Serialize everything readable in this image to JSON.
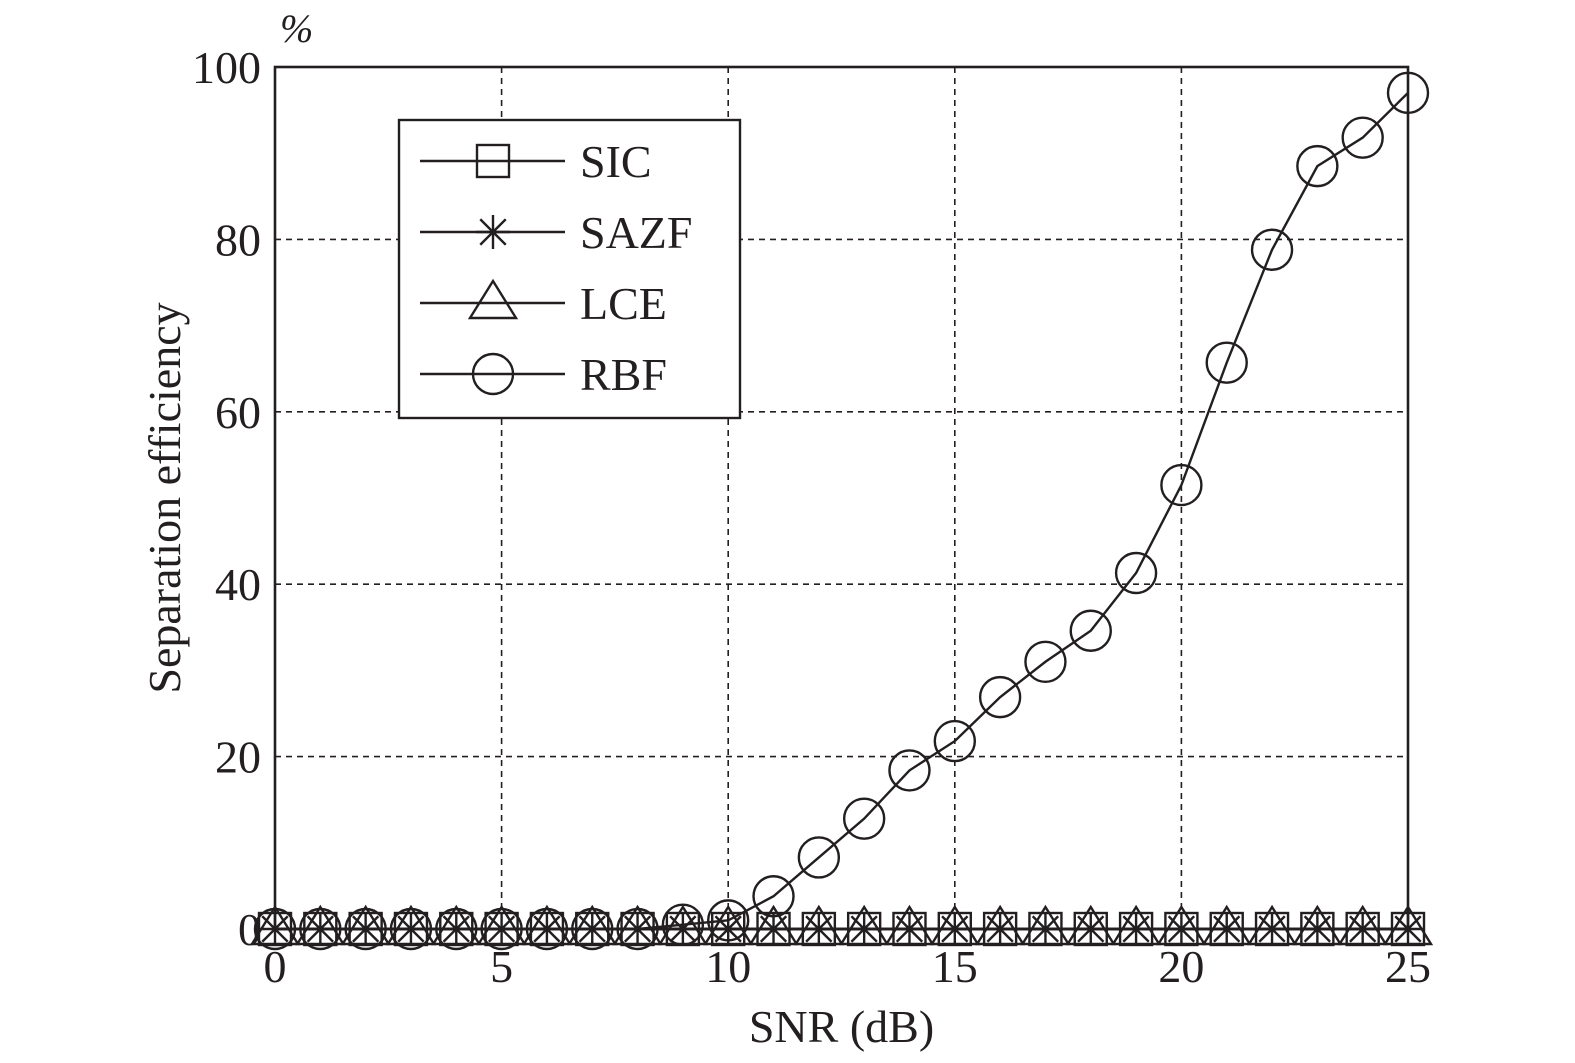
{
  "chart_data": {
    "type": "line",
    "xlabel": "SNR (dB)",
    "ylabel": "Separation efficiency",
    "y_unit": "%",
    "xlim": [
      0,
      25
    ],
    "ylim": [
      0,
      100
    ],
    "x_ticks": [
      "0",
      "5",
      "10",
      "15",
      "20",
      "25"
    ],
    "y_ticks": [
      "0",
      "20",
      "40",
      "60",
      "80",
      "100"
    ],
    "grid": true,
    "legend_position": "top-left",
    "x": [
      0,
      1,
      2,
      3,
      4,
      5,
      6,
      7,
      8,
      9,
      10,
      11,
      12,
      13,
      14,
      15,
      16,
      17,
      18,
      19,
      20,
      21,
      22,
      23,
      24,
      25
    ],
    "series": [
      {
        "name": "SIC",
        "marker": "square",
        "values": [
          0,
          0,
          0,
          0,
          0,
          0,
          0,
          0,
          0,
          0,
          0,
          0,
          0,
          0,
          0,
          0,
          0,
          0,
          0,
          0,
          0,
          0,
          0,
          0,
          0,
          0
        ]
      },
      {
        "name": "SAZF",
        "marker": "asterisk",
        "values": [
          0,
          0,
          0,
          0,
          0,
          0,
          0,
          0,
          0,
          0,
          0,
          0,
          0,
          0,
          0,
          0,
          0,
          0,
          0,
          0,
          0,
          0,
          0,
          0,
          0,
          0
        ]
      },
      {
        "name": "LCE",
        "marker": "triangle",
        "values": [
          0,
          0,
          0,
          0,
          0,
          0,
          0,
          0,
          0,
          0,
          0,
          0,
          0,
          0,
          0,
          0,
          0,
          0,
          0,
          0,
          0,
          0,
          0,
          0,
          0,
          0
        ]
      },
      {
        "name": "RBF",
        "marker": "circle",
        "values": [
          0,
          0,
          0,
          0,
          0,
          0,
          0,
          0,
          0,
          0.5,
          1.0,
          3.8,
          8.3,
          12.8,
          18.4,
          21.8,
          26.9,
          31.0,
          34.6,
          41.3,
          51.5,
          65.7,
          78.8,
          88.5,
          91.8,
          97.0
        ]
      }
    ]
  }
}
